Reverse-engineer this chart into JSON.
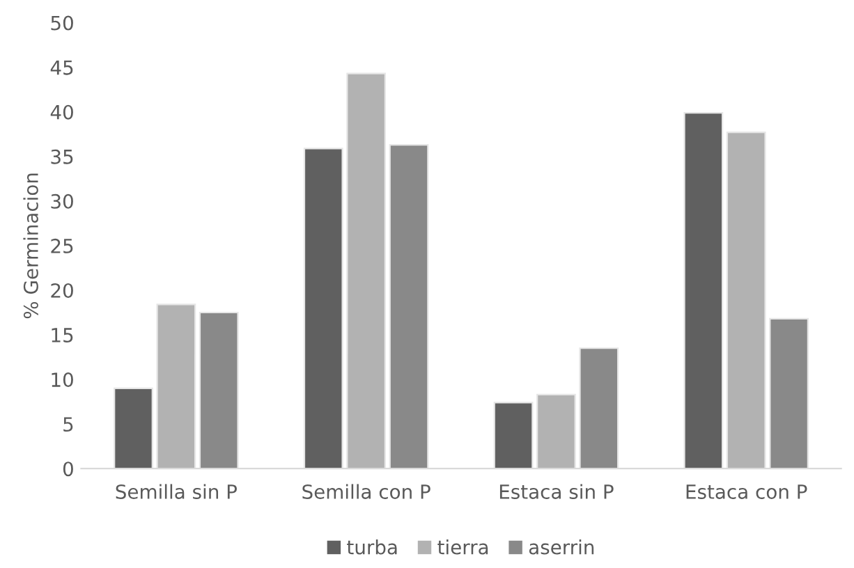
{
  "chart_data": {
    "type": "bar",
    "ylabel": "% Germinacion",
    "categories": [
      "Semilla sin P",
      "Semilla con P",
      "Estaca sin P",
      "Estaca con P"
    ],
    "series": [
      {
        "name": "turba",
        "color": "#606060",
        "values": [
          9.0,
          35.9,
          7.4,
          39.9
        ]
      },
      {
        "name": "tierra",
        "color": "#b2b2b2",
        "values": [
          18.4,
          44.3,
          8.3,
          37.7
        ]
      },
      {
        "name": "aserrin",
        "color": "#898989",
        "values": [
          17.5,
          36.3,
          13.5,
          16.8
        ]
      }
    ],
    "ylim": [
      0,
      50
    ],
    "yticks": [
      0,
      5,
      10,
      15,
      20,
      25,
      30,
      35,
      40,
      45,
      50
    ],
    "grid": false,
    "legend": "bottom"
  }
}
